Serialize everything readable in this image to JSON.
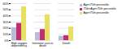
{
  "chart_data": {
    "type": "bar",
    "categories": [
      "High oxygen\ndependency",
      "Intensive care or\ndeath",
      "Death"
    ],
    "series": [
      {
        "name": "Age<75th percentile",
        "color": "#b8bcd8",
        "values": [
          21,
          13,
          7
        ]
      },
      {
        "name": "75th<Age<75th percentile",
        "color": "#c03070",
        "values": [
          28,
          18,
          8
        ]
      },
      {
        "name": "Age>75th percentile",
        "color": "#e8e060",
        "values": [
          55,
          42,
          22
        ]
      }
    ],
    "ylim": [
      0,
      60
    ],
    "yticks": [
      {
        "value": 0,
        "label": "0%"
      },
      {
        "value": 10,
        "label": "10%"
      },
      {
        "value": 20,
        "label": "20%"
      },
      {
        "value": 30,
        "label": "30%"
      },
      {
        "value": 40,
        "label": "40%"
      },
      {
        "value": 50,
        "label": "50%"
      },
      {
        "value": 60,
        "label": "60%"
      }
    ],
    "grid": true,
    "legend": "upper right"
  }
}
